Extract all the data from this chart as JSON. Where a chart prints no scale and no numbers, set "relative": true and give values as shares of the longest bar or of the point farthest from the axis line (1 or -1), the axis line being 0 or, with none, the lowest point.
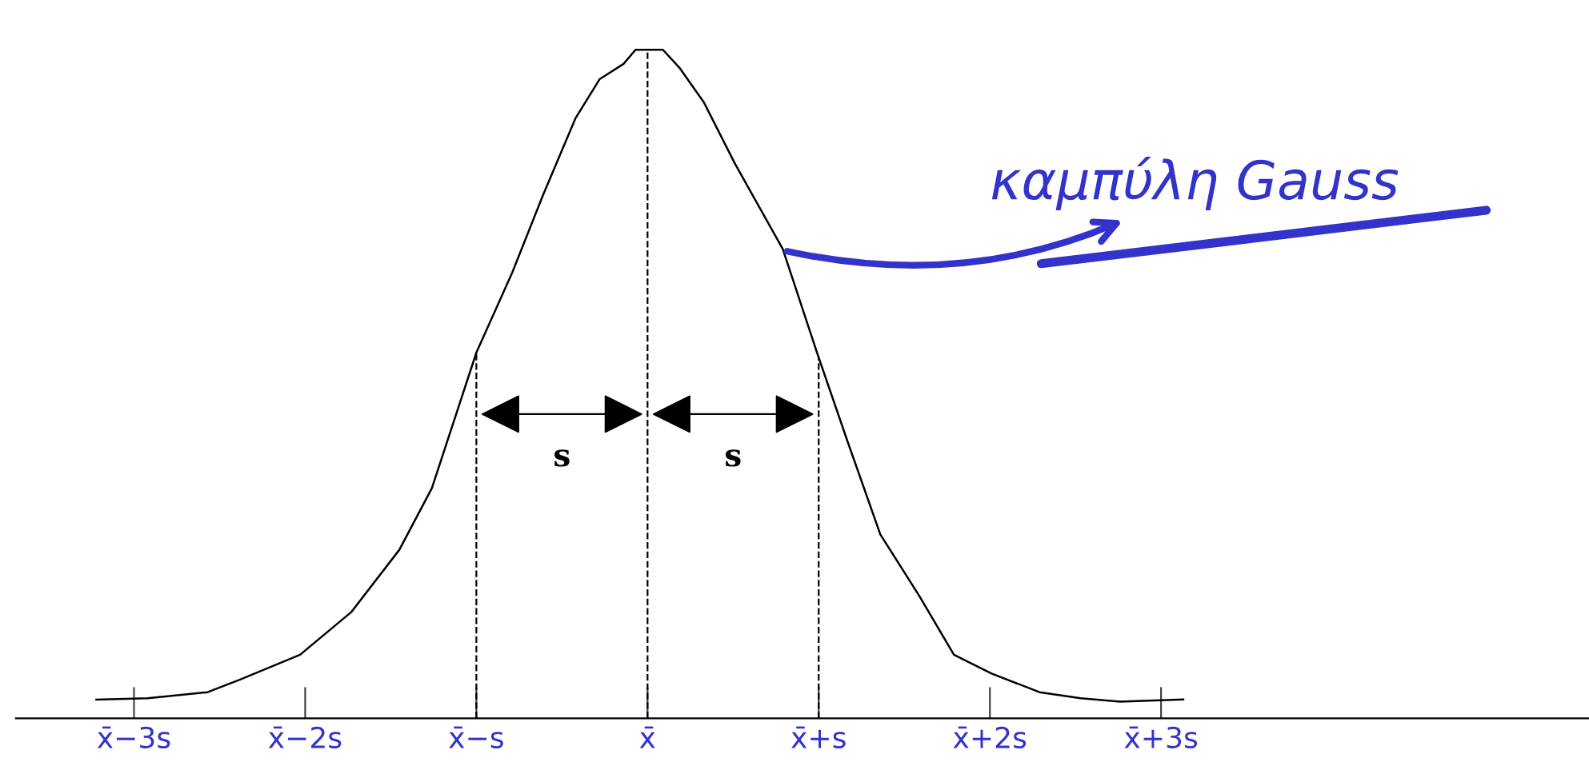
{
  "chart_data": {
    "type": "line",
    "relative": true,
    "tick_labels": "x",
    "x": [
      -3.22,
      -2.92,
      -2.57,
      -2.38,
      -2.03,
      -1.73,
      -1.45,
      -1.26,
      -1.0,
      -0.79,
      -0.61,
      -0.42,
      -0.28,
      -0.14,
      -0.07,
      0.09,
      0.19,
      0.33,
      0.51,
      0.79,
      0.99,
      1.17,
      1.36,
      1.59,
      1.79,
      2.01,
      2.29,
      2.53,
      2.76,
      3.13
    ],
    "series": [
      {
        "color": "#000000",
        "values": [
          0.028,
          0.03,
          0.039,
          0.058,
          0.095,
          0.159,
          0.252,
          0.344,
          0.547,
          0.667,
          0.783,
          0.898,
          0.956,
          0.979,
          1.0,
          1.0,
          0.972,
          0.921,
          0.83,
          0.702,
          0.547,
          0.413,
          0.275,
          0.182,
          0.095,
          0.067,
          0.039,
          0.03,
          0.025,
          0.028
        ]
      }
    ],
    "xlim": [
      -3.69,
      5.5
    ],
    "xticks": [
      {
        "value": -3,
        "label": "x̄−3s"
      },
      {
        "value": -2,
        "label": "x̄−2s"
      },
      {
        "value": -1,
        "label": "x̄−s"
      },
      {
        "value": 0,
        "label": "x̄"
      },
      {
        "value": 1,
        "label": "x̄+s"
      },
      {
        "value": 2,
        "label": "x̄+2s"
      },
      {
        "value": 3,
        "label": "x̄+3s"
      }
    ],
    "ref_lines": [
      {
        "axis": "x",
        "value": -1,
        "line_style": "dashed"
      },
      {
        "axis": "x",
        "value": 0,
        "line_style": "dashed"
      },
      {
        "axis": "x",
        "value": 1,
        "line_style": "dashed"
      }
    ],
    "annotations": [
      "s",
      "s",
      {
        "text": "καμπύλη Gauss",
        "x": 0.79,
        "y": 0.7
      }
    ],
    "grid": false
  }
}
